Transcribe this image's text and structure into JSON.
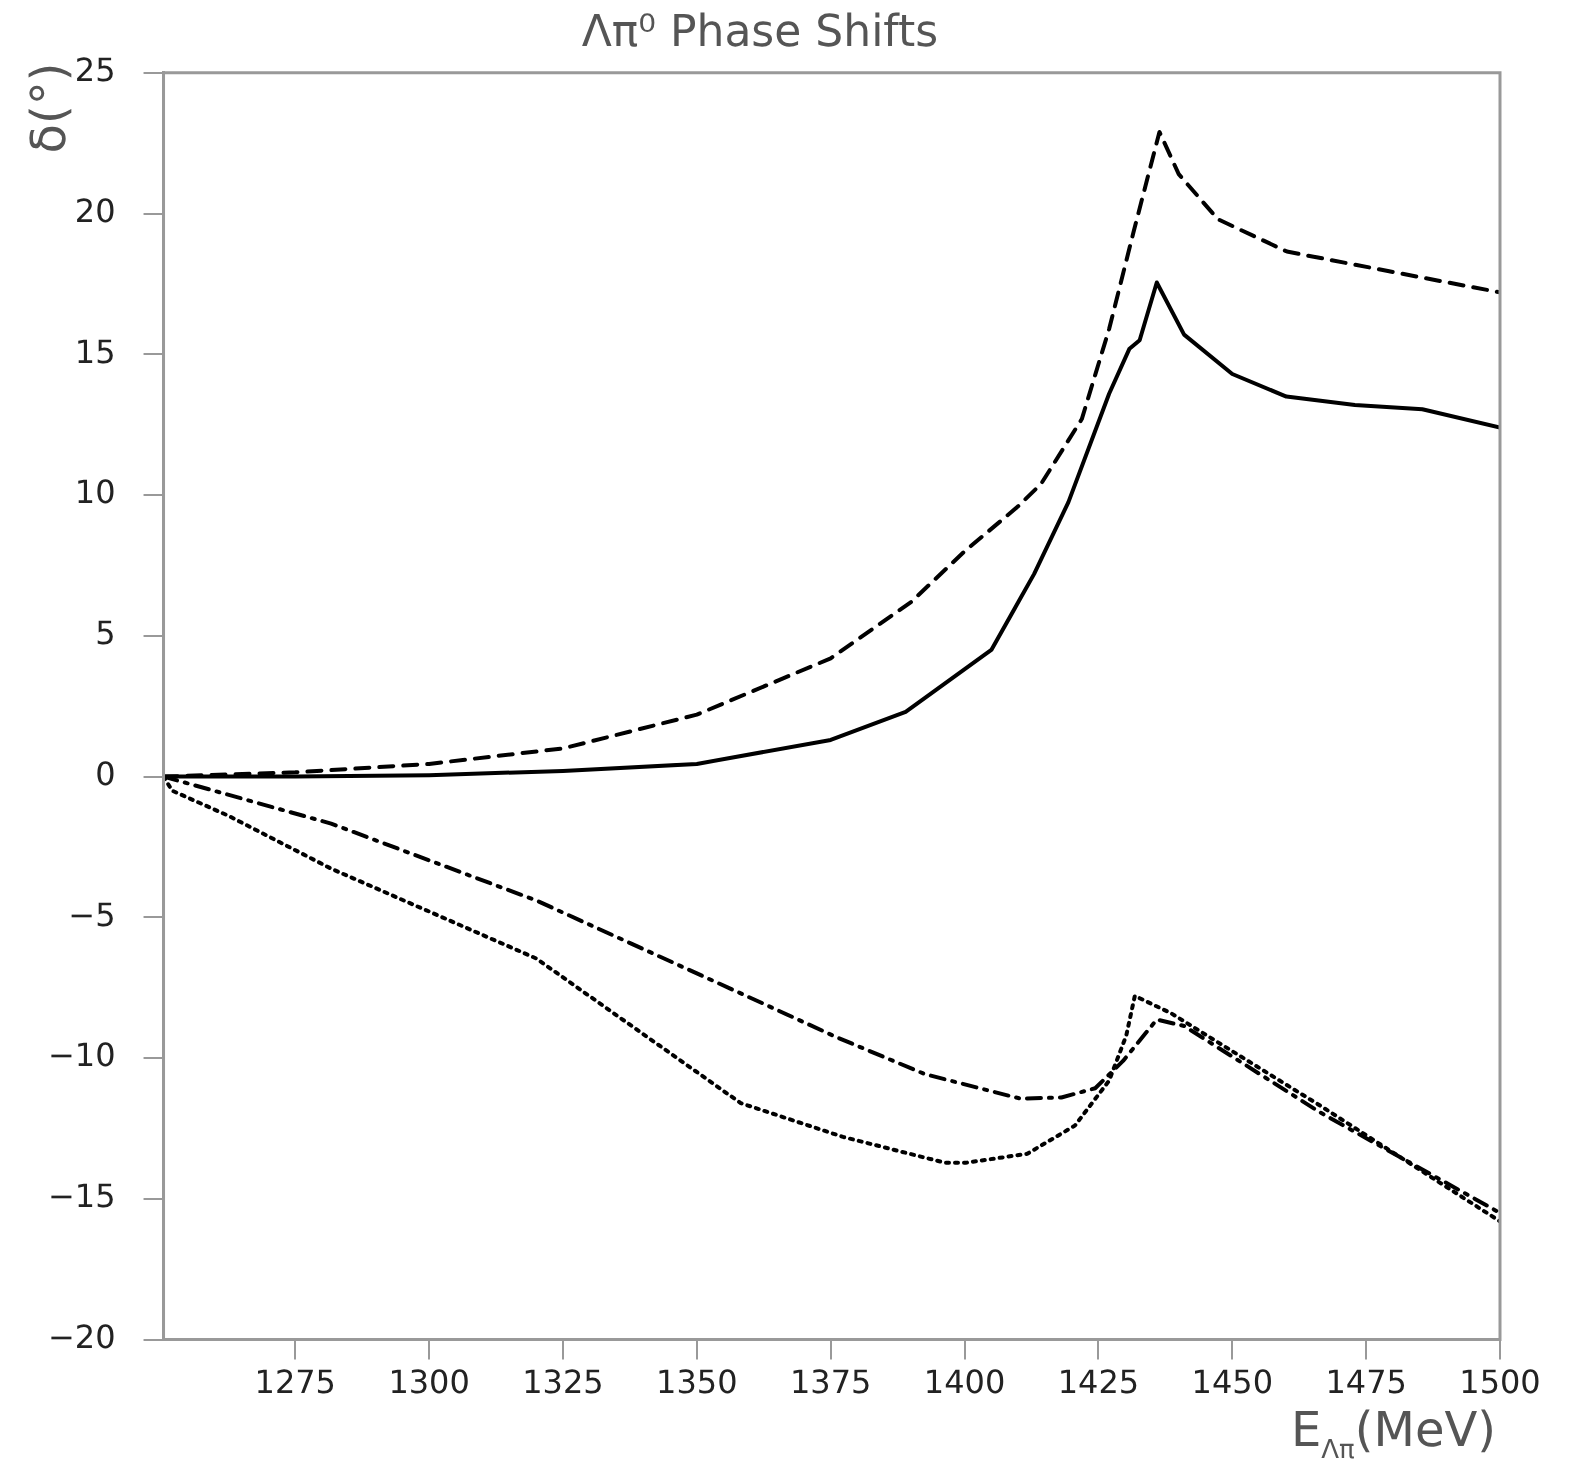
{
  "chart_data": {
    "type": "line",
    "title": "Λπ⁰ Phase Shifts",
    "xlabel": "E$_{Λπ}$(MeV)",
    "ylabel": "δ(°)",
    "xlim": [
      1250.4,
      1500
    ],
    "xticks": [
      1275,
      1300,
      1325,
      1350,
      1375,
      1400,
      1425,
      1450,
      1475,
      1500
    ],
    "ylim": [
      -20,
      25
    ],
    "yticks": [
      -20,
      -15,
      -10,
      -5,
      0,
      5,
      10,
      15,
      20,
      25
    ],
    "grid": false,
    "legend": false,
    "marker": "none",
    "series": [
      {
        "color": "#000000",
        "line_style": "dashed",
        "x": [
          1250.4,
          1275,
          1300,
          1325,
          1350,
          1375,
          1390,
          1400,
          1410,
          1414.3,
          1421.9,
          1427,
          1431.5,
          1436.4,
          1440,
          1447.3,
          1460.2,
          1479.3,
          1500
        ],
        "values": [
          0,
          0.15,
          0.45,
          1.0,
          2.2,
          4.2,
          6.2,
          8.0,
          9.6,
          10.4,
          12.7,
          15.9,
          19.3,
          22.9,
          21.4,
          19.8,
          18.65,
          17.95,
          17.2
        ]
      },
      {
        "color": "#000000",
        "line_style": "solid",
        "x": [
          1250.4,
          1275,
          1300,
          1325,
          1350,
          1375,
          1389,
          1405,
          1413,
          1419.4,
          1427,
          1430.8,
          1432.7,
          1435.9,
          1441,
          1450,
          1460.1,
          1472.9,
          1485.5,
          1500
        ],
        "values": [
          0,
          0,
          0.05,
          0.2,
          0.45,
          1.3,
          2.3,
          4.5,
          7.2,
          9.75,
          13.6,
          15.2,
          15.5,
          17.55,
          15.7,
          14.3,
          13.5,
          13.2,
          13.05,
          12.4
        ]
      },
      {
        "color": "#000000",
        "line_style": "dashdot",
        "x": [
          1250.4,
          1281.7,
          1320,
          1358.2,
          1376,
          1392.6,
          1410.4,
          1418.1,
          1424.4,
          1429.6,
          1435.9,
          1441,
          1466.5,
          1500
        ],
        "values": [
          0,
          -1.67,
          -4.4,
          -7.7,
          -9.25,
          -10.57,
          -11.44,
          -11.4,
          -11.07,
          -10.1,
          -8.63,
          -8.86,
          -11.94,
          -15.5
        ]
      },
      {
        "color": "#000000",
        "line_style": "dotted",
        "x": [
          1250.4,
          1252,
          1262.6,
          1281.7,
          1320,
          1358.2,
          1377.3,
          1396.4,
          1400.2,
          1411.7,
          1420.6,
          1427,
          1430.2,
          1431.8,
          1438.5,
          1466.5,
          1500
        ],
        "values": [
          0,
          -0.5,
          -1.4,
          -3.27,
          -6.46,
          -11.6,
          -12.8,
          -13.72,
          -13.72,
          -13.4,
          -12.4,
          -10.8,
          -9.2,
          -7.79,
          -8.4,
          -11.7,
          -15.8
        ]
      }
    ]
  }
}
